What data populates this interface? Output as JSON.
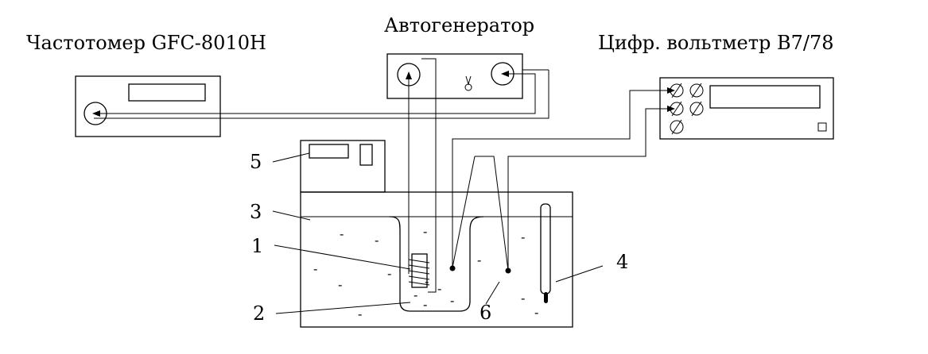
{
  "labels": {
    "frequency_meter": "Частотомер GFC-8010H",
    "generator": "Автогенератор",
    "voltmeter": "Цифр. вольтметр В7/78"
  },
  "callouts": {
    "n1": "1",
    "n2": "2",
    "n3": "3",
    "n4": "4",
    "n5": "5",
    "n6": "6"
  },
  "liquid_mark": "-"
}
